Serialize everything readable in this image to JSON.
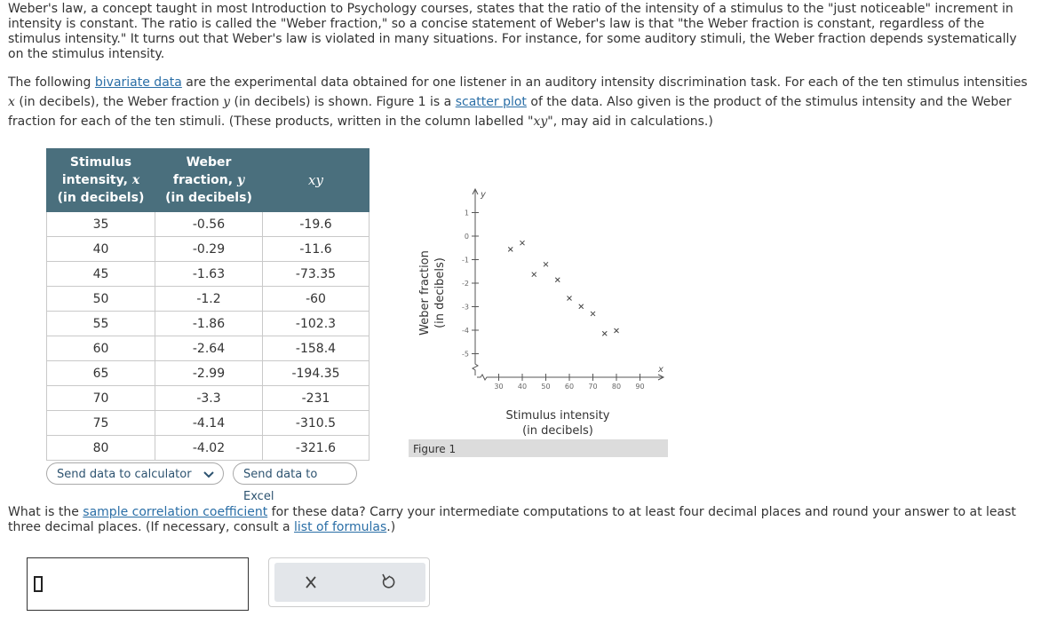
{
  "intro": "Weber's law, a concept taught in most Introduction to Psychology courses, states that the ratio of the intensity of a stimulus to the \"just noticeable\" increment in intensity is constant. The ratio is called the \"Weber fraction,\" so a concise statement of Weber's law is that \"the Weber fraction is constant, regardless of the stimulus intensity.\" It turns out that Weber's law is violated in many situations. For instance, for some auditory stimuli, the Weber fraction depends systematically on the stimulus intensity.",
  "description": [
    "The following ",
    "bivariate data",
    " are the experimental data obtained for one listener in an auditory intensity discrimination task. For each of the ten stimulus intensities ",
    "x",
    " (in decibels), the Weber fraction ",
    "y",
    " (in decibels) is shown. Figure 1 is a ",
    "scatter plot",
    " of the data. Also given is the product of the stimulus intensity and the Weber fraction for each of the ten stimuli. (These products, written in the column labelled \"",
    "xy",
    "\", may aid in calculations.)"
  ],
  "table": {
    "header": [
      [
        "Stimulus",
        "intensity, ",
        "x",
        "(in decibels)"
      ],
      [
        "Weber",
        "fraction, ",
        "y",
        "(in decibels)"
      ],
      [
        "xy"
      ]
    ],
    "rows": [
      [
        35,
        -0.56,
        -19.6
      ],
      [
        40,
        -0.29,
        -11.6
      ],
      [
        45,
        -1.63,
        -73.35
      ],
      [
        50,
        -1.2,
        -60
      ],
      [
        55,
        -1.86,
        -102.3
      ],
      [
        60,
        -2.64,
        -158.4
      ],
      [
        65,
        -2.99,
        -194.35
      ],
      [
        70,
        -3.3,
        -231
      ],
      [
        75,
        -4.14,
        -310.5
      ],
      [
        80,
        -4.02,
        -321.6
      ]
    ]
  },
  "buttons": {
    "calculator": "Send data to calculator",
    "excel": "Send data to Excel"
  },
  "figure": {
    "y_label": [
      "Weber fraction",
      "(in decibels)"
    ],
    "x_label": [
      "Stimulus intensity",
      "(in decibels)"
    ],
    "x_symbol": "x",
    "y_symbol": "y",
    "xlim": [
      20,
      100
    ],
    "ylim": [
      -6,
      2
    ],
    "xticks": [
      30,
      40,
      50,
      60,
      70,
      80,
      90
    ],
    "yticks": [
      1,
      0,
      -1,
      -2,
      -3,
      -4,
      -5
    ],
    "caption": "Figure 1"
  },
  "question": [
    "What is the ",
    "sample correlation coefficient",
    " for these data? Carry your intermediate computations to at least four decimal places and round your answer to at least three decimal places. (If necessary, consult a ",
    "list of formulas",
    ".)"
  ]
}
